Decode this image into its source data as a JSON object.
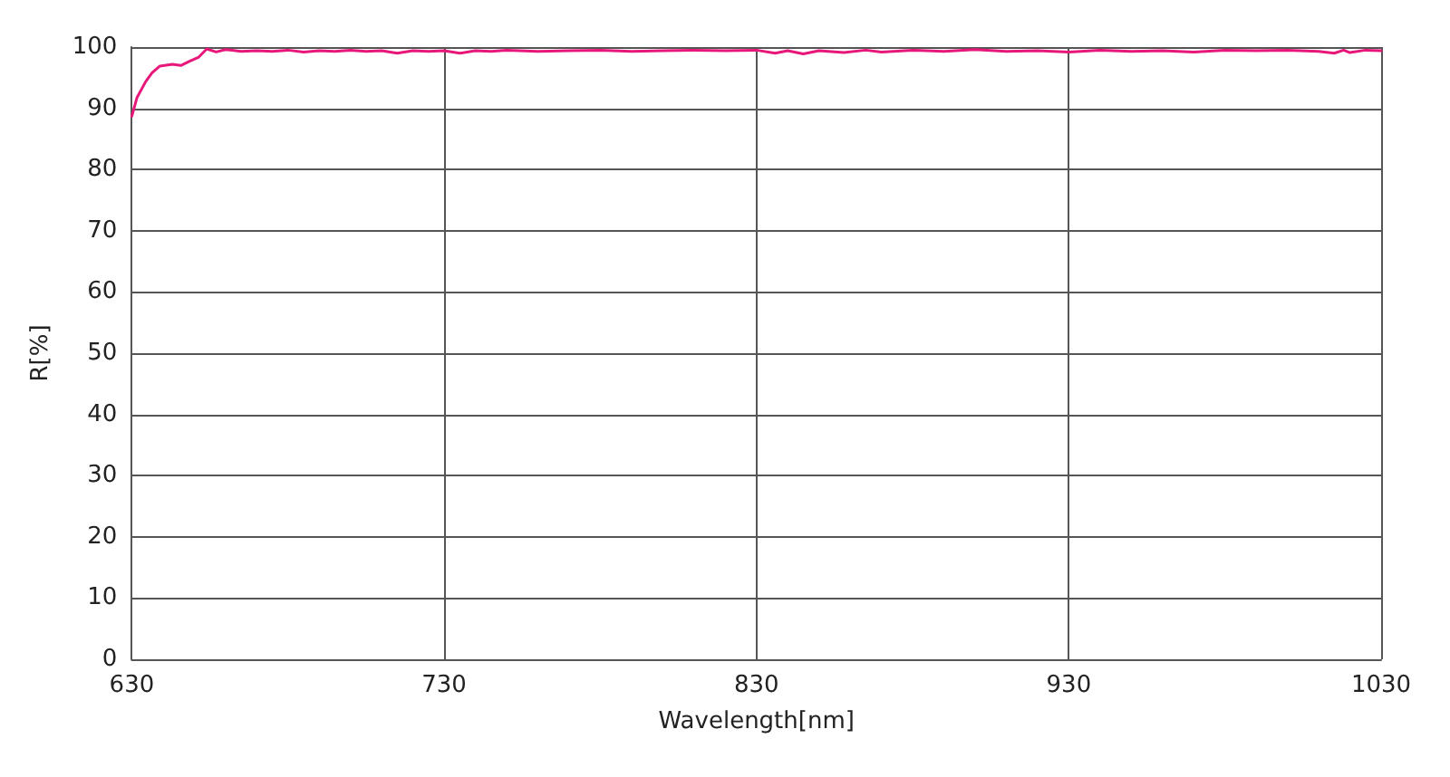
{
  "chart_data": {
    "type": "line",
    "xlabel": "Wavelength[nm]",
    "ylabel": "R[%]",
    "xlim": [
      630,
      1030
    ],
    "ylim": [
      0,
      100
    ],
    "xticks": [
      630,
      730,
      830,
      930,
      1030
    ],
    "yticks": [
      0,
      10,
      20,
      30,
      40,
      50,
      60,
      70,
      80,
      90,
      100
    ],
    "grid": true,
    "marker": "none",
    "line_style": "solid",
    "series": [
      {
        "color": "#e8177a",
        "x": [
          630,
          631.7,
          634.5,
          636.5,
          639,
          643,
          645.7,
          648.5,
          651.3,
          654,
          657,
          660,
          665,
          670,
          675,
          680,
          685,
          690,
          695,
          700,
          705,
          710,
          715,
          720,
          725,
          730,
          735,
          740,
          745,
          750,
          760,
          770,
          780,
          790,
          800,
          810,
          820,
          830,
          836,
          840,
          845,
          850,
          858,
          865,
          870,
          880,
          890,
          900,
          910,
          920,
          930,
          940,
          950,
          960,
          970,
          980,
          990,
          1000,
          1010,
          1015,
          1018,
          1020,
          1025,
          1030
        ],
        "values": [
          88.7,
          91.8,
          94.4,
          95.8,
          96.9,
          97.2,
          97.0,
          97.7,
          98.3,
          99.7,
          99.2,
          99.6,
          99.3,
          99.4,
          99.3,
          99.5,
          99.2,
          99.4,
          99.3,
          99.5,
          99.3,
          99.4,
          99.0,
          99.4,
          99.3,
          99.4,
          99.0,
          99.4,
          99.3,
          99.5,
          99.3,
          99.4,
          99.5,
          99.3,
          99.4,
          99.5,
          99.4,
          99.5,
          99.0,
          99.4,
          98.9,
          99.4,
          99.1,
          99.5,
          99.2,
          99.5,
          99.3,
          99.6,
          99.3,
          99.4,
          99.2,
          99.5,
          99.3,
          99.4,
          99.2,
          99.5,
          99.4,
          99.5,
          99.3,
          99.0,
          99.5,
          99.1,
          99.5,
          99.4
        ]
      }
    ]
  }
}
